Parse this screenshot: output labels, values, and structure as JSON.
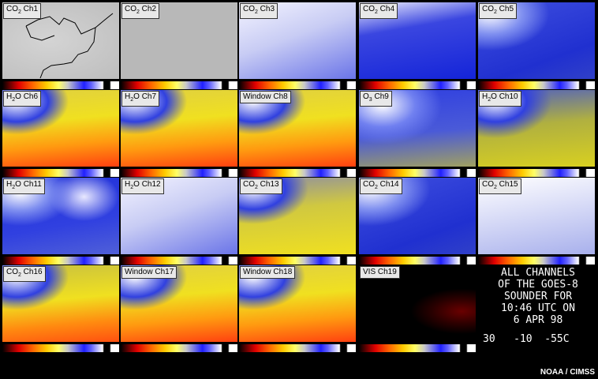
{
  "panels": [
    {
      "pre": "CO",
      "sub": "2",
      "post": " Ch1",
      "style": "gray_map"
    },
    {
      "pre": "CO",
      "sub": "2",
      "post": " Ch2",
      "style": "gray"
    },
    {
      "pre": "CO",
      "sub": "2",
      "post": " Ch3",
      "style": "white_blue"
    },
    {
      "pre": "CO",
      "sub": "2",
      "post": " Ch4",
      "style": "blue"
    },
    {
      "pre": "CO",
      "sub": "2",
      "post": " Ch5",
      "style": "blue_cloud"
    },
    {
      "pre": "H",
      "sub": "2",
      "post": "O Ch6",
      "style": "warm"
    },
    {
      "pre": "H",
      "sub": "2",
      "post": "O Ch7",
      "style": "warm"
    },
    {
      "pre": "Window Ch8",
      "sub": "",
      "post": "",
      "style": "warm"
    },
    {
      "pre": "O",
      "sub": "3",
      "post": " Ch9",
      "style": "blue_yellow"
    },
    {
      "pre": "H",
      "sub": "2",
      "post": "O Ch10",
      "style": "yellow_blue"
    },
    {
      "pre": "H",
      "sub": "2",
      "post": "O Ch11",
      "style": "blue_swirl"
    },
    {
      "pre": "H",
      "sub": "2",
      "post": "O Ch12",
      "style": "white_blue"
    },
    {
      "pre": "CO",
      "sub": "2",
      "post": " Ch13",
      "style": "yellow_cloud"
    },
    {
      "pre": "CO",
      "sub": "2",
      "post": " Ch14",
      "style": "blue_cloud"
    },
    {
      "pre": "CO",
      "sub": "2",
      "post": " Ch15",
      "style": "pale"
    },
    {
      "pre": "CO",
      "sub": "2",
      "post": " Ch16",
      "style": "warm_mid"
    },
    {
      "pre": "Window Ch17",
      "sub": "",
      "post": "",
      "style": "warm"
    },
    {
      "pre": "Window Ch18",
      "sub": "",
      "post": "",
      "style": "warm"
    },
    {
      "pre": "VIS Ch19",
      "sub": "",
      "post": "",
      "style": "dark"
    }
  ],
  "info_lines": [
    "ALL CHANNELS",
    "OF THE GOES-8",
    "SOUNDER FOR",
    "10:46 UTC ON",
    "6 APR 98"
  ],
  "scale_text": "30   -10  -55C",
  "credit": "NOAA / CIMSS"
}
